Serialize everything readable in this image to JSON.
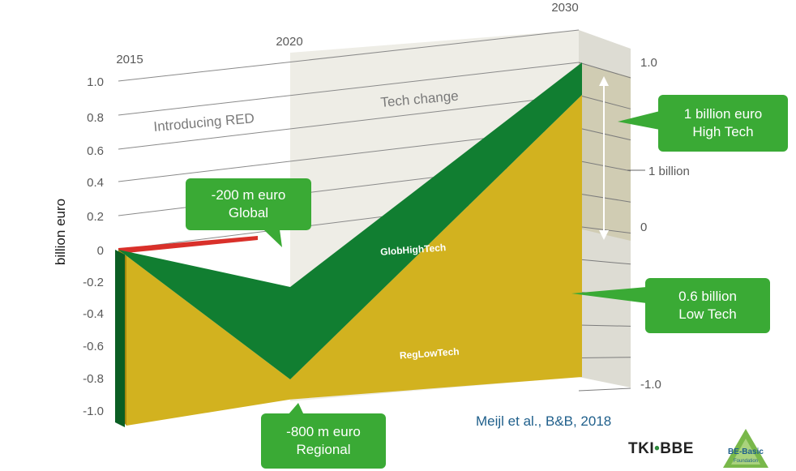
{
  "chart_data": {
    "type": "area",
    "ylabel": "billion euro",
    "x": [
      "2015",
      "2020",
      "2030"
    ],
    "ylim": [
      -1.0,
      1.0
    ],
    "yticks": [
      "1.0",
      "0.8",
      "0.6",
      "0.4",
      "0.2",
      "0",
      "-0.2",
      "-0.4",
      "-0.6",
      "-0.8",
      "-1.0"
    ],
    "right_axis_ticks": [
      "1.0",
      "0",
      "-1.0"
    ],
    "phases": [
      "Introducing RED",
      "Tech change"
    ],
    "series": [
      {
        "name": "GlobHighTech",
        "values": [
          0.0,
          -0.2,
          1.0
        ],
        "color": "#117e31"
      },
      {
        "name": "RegLowTech",
        "values": [
          0.0,
          -0.8,
          0.6
        ],
        "color": "#d2b21f"
      }
    ],
    "span_marker": "1 billion",
    "annotations": [
      {
        "lines": [
          "-200 m euro",
          "Global"
        ]
      },
      {
        "lines": [
          "-800 m euro",
          "Regional"
        ]
      },
      {
        "lines": [
          "1 billion euro",
          "High Tech"
        ]
      },
      {
        "lines": [
          "0.6 billion",
          "Low Tech"
        ]
      }
    ]
  },
  "credit": "Meijl et al., B&B, 2018",
  "logos": {
    "tki_left": "TKI",
    "tki_right": "BBE",
    "bebasic": "BE-Basic",
    "bebasic_sub": "Foundation"
  }
}
